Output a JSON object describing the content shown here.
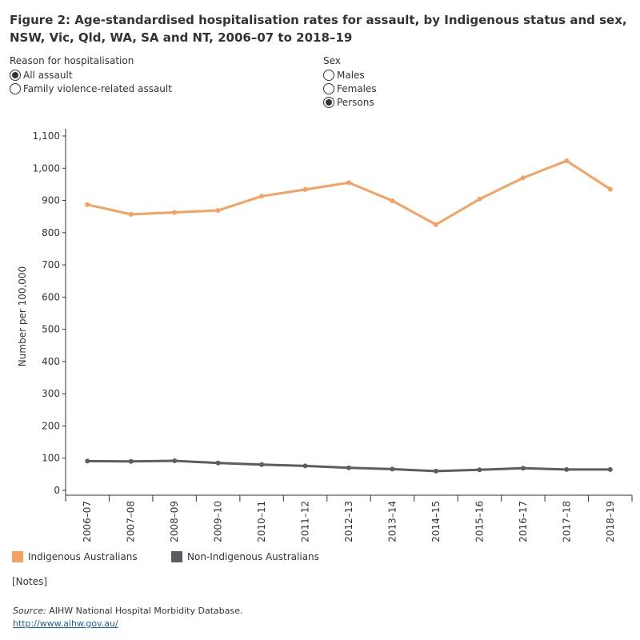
{
  "title": "Figure 2: Age-standardised hospitalisation rates for assault, by Indigenous status and sex, NSW, Vic, Qld, WA, SA and NT, 2006–07 to 2018–19",
  "filters": {
    "reason": {
      "label": "Reason for hospitalisation",
      "options": [
        "All assault",
        "Family violence-related assault"
      ],
      "selected": "All assault"
    },
    "sex": {
      "label": "Sex",
      "options": [
        "Males",
        "Females",
        "Persons"
      ],
      "selected": "Persons"
    }
  },
  "chart_data": {
    "type": "line",
    "ylabel": "Number per 100,000",
    "xlabel": "",
    "ylim": [
      0,
      1100
    ],
    "yticks": [
      0,
      100,
      200,
      300,
      400,
      500,
      600,
      700,
      800,
      900,
      1000,
      1100
    ],
    "ytick_labels": [
      "0",
      "100",
      "200",
      "300",
      "400",
      "500",
      "600",
      "700",
      "800",
      "900",
      "1,000",
      "1,100"
    ],
    "categories": [
      "2006–07",
      "2007–08",
      "2008–09",
      "2009–10",
      "2010–11",
      "2011–12",
      "2012–13",
      "2013–14",
      "2014–15",
      "2015–16",
      "2016–17",
      "2017–18",
      "2018–19"
    ],
    "series": [
      {
        "name": "Indigenous Australians",
        "color": "#f4a261",
        "values": [
          887,
          857,
          863,
          869,
          913,
          934,
          955,
          899,
          825,
          904,
          970,
          1023,
          935
        ]
      },
      {
        "name": "Non-Indigenous Australians",
        "color": "#5a5e62",
        "values": [
          91,
          90,
          92,
          85,
          80,
          76,
          70,
          66,
          60,
          64,
          69,
          65,
          65
        ]
      }
    ],
    "grid": false,
    "legend": "bottom-left"
  },
  "notes_label": "[Notes]",
  "source": {
    "prefix": "Source:",
    "text": " AIHW National Hospital Morbidity Database.",
    "url": "http://www.aihw.gov.au/"
  }
}
